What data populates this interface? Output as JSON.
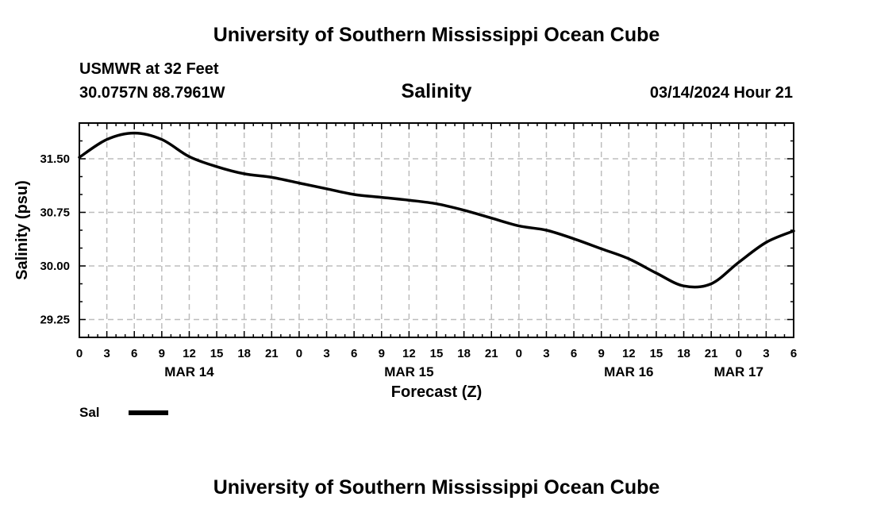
{
  "header": {
    "title": "University of Southern Mississippi Ocean Cube",
    "station": "USMWR at 32 Feet",
    "coords": "30.0757N  88.7961W",
    "parameter": "Salinity",
    "datetime": "03/14/2024 Hour 21"
  },
  "footer": {
    "title": "University of Southern Mississippi Ocean Cube"
  },
  "legend": {
    "label": "Sal"
  },
  "colors": {
    "line": "#000000",
    "grid": "#bdbdbd",
    "background": "#ffffff"
  },
  "chart_data": {
    "type": "line",
    "title": "Salinity",
    "xlabel": "Forecast (Z)",
    "ylabel": "Salinity (psu)",
    "x_unit": "hours from 00Z MAR 14",
    "xlim": [
      0,
      78
    ],
    "ylim": [
      29.0,
      32.0
    ],
    "yticks": [
      29.25,
      30.0,
      30.75,
      31.5
    ],
    "ytick_labels": [
      "29.25",
      "30.00",
      "30.75",
      "31.50"
    ],
    "xticks": [
      0,
      3,
      6,
      9,
      12,
      15,
      18,
      21,
      24,
      27,
      30,
      33,
      36,
      39,
      42,
      45,
      48,
      51,
      54,
      57,
      60,
      63,
      66,
      69,
      72,
      75,
      78
    ],
    "xtick_labels": [
      "0",
      "3",
      "6",
      "9",
      "12",
      "15",
      "18",
      "21",
      "0",
      "3",
      "6",
      "9",
      "12",
      "15",
      "18",
      "21",
      "0",
      "3",
      "6",
      "9",
      "12",
      "15",
      "18",
      "21",
      "0",
      "3",
      "6"
    ],
    "date_labels": [
      {
        "x": 12,
        "label": "MAR 14"
      },
      {
        "x": 36,
        "label": "MAR 15"
      },
      {
        "x": 60,
        "label": "MAR 16"
      },
      {
        "x": 72,
        "label": "MAR 17"
      }
    ],
    "grid": true,
    "series": [
      {
        "name": "Sal",
        "x": [
          0,
          3,
          6,
          9,
          12,
          15,
          18,
          21,
          24,
          27,
          30,
          33,
          36,
          39,
          42,
          45,
          48,
          51,
          54,
          57,
          60,
          63,
          66,
          69,
          72,
          75,
          78
        ],
        "y": [
          31.52,
          31.77,
          31.86,
          31.77,
          31.53,
          31.39,
          31.29,
          31.24,
          31.16,
          31.08,
          31.0,
          30.96,
          30.92,
          30.87,
          30.78,
          30.67,
          30.56,
          30.5,
          30.38,
          30.24,
          30.1,
          29.9,
          29.72,
          29.75,
          30.05,
          30.33,
          30.49
        ]
      }
    ]
  }
}
